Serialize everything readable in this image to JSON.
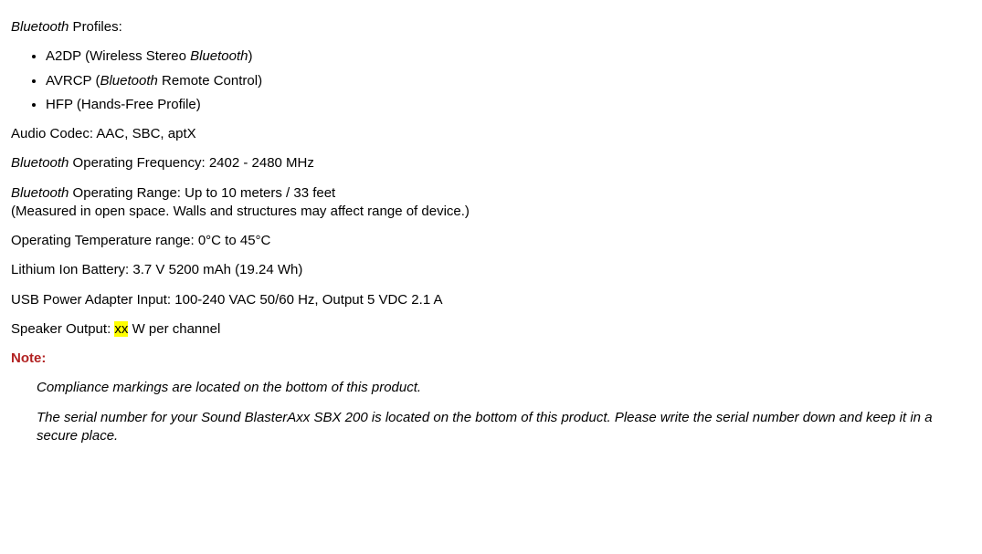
{
  "profiles": {
    "label_prefix": "Bluetooth",
    "label_suffix": " Profiles:",
    "items": [
      {
        "text": "A2DP (Wireless Stereo ",
        "italic_word": "Bluetooth",
        "text_after": ")"
      },
      {
        "text": "AVRCP (",
        "italic_word": "Bluetooth",
        "text_after": " Remote Control)"
      },
      {
        "text": "HFP (Hands-Free Profile)",
        "italic_word": "",
        "text_after": ""
      }
    ]
  },
  "audio_codec": {
    "label": "Audio Codec: ",
    "value": "AAC, SBC, aptX"
  },
  "operating_freq": {
    "prefix": "Bluetooth",
    "label": " Operating Frequency: ",
    "value": "2402 - 2480 MHz"
  },
  "operating_range": {
    "prefix": "Bluetooth",
    "label": " Operating Range: ",
    "value": "Up to 10 meters / 33 feet",
    "sub": "(Measured in open space. Walls and structures may affect range of device.)"
  },
  "temperature": {
    "label": "Operating Temperature range: ",
    "value": "0°C to 45°C"
  },
  "battery": {
    "label": "Lithium Ion Battery: ",
    "value": "3.7 V 5200 mAh (19.24 Wh)"
  },
  "usb_adapter": {
    "label": "USB Power Adapter Input: ",
    "value": "100-240 VAC 50/60 Hz, Output 5 VDC 2.1 A"
  },
  "speaker_output": {
    "label": "Speaker Output: ",
    "placeholder": "xx",
    "suffix": " W per channel"
  },
  "note": {
    "label": "Note:",
    "p1": "Compliance markings are located on the bottom of this product.",
    "p2": "The serial number for your Sound BlasterAxx SBX 200 is located on the bottom of this product. Please write the serial number down and keep it in a secure place."
  }
}
